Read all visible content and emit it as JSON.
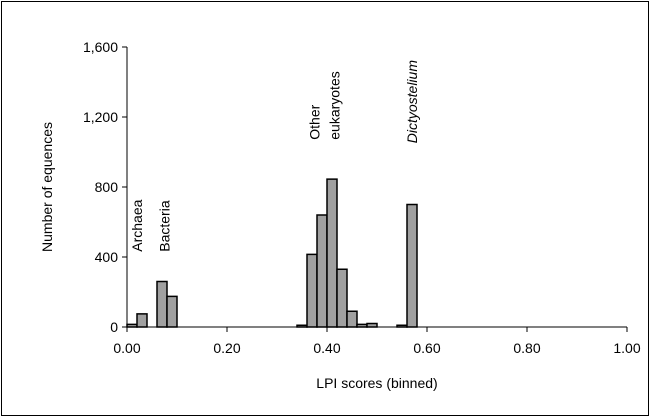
{
  "chart_data": {
    "type": "bar",
    "title": "",
    "xlabel": "LPI scores (binned)",
    "ylabel": "Number of equences",
    "xlim": [
      0,
      1.0
    ],
    "ylim": [
      0,
      1600
    ],
    "x_ticks": [
      "0.00",
      "0.20",
      "0.40",
      "0.60",
      "0.80",
      "1.00"
    ],
    "y_ticks": [
      "0",
      "400",
      "800",
      "1,200",
      "1,600"
    ],
    "bin_width": 0.02,
    "bins": [
      {
        "x": 0.0,
        "value": 15
      },
      {
        "x": 0.02,
        "value": 75
      },
      {
        "x": 0.06,
        "value": 260
      },
      {
        "x": 0.08,
        "value": 175
      },
      {
        "x": 0.34,
        "value": 10
      },
      {
        "x": 0.36,
        "value": 415
      },
      {
        "x": 0.38,
        "value": 640
      },
      {
        "x": 0.4,
        "value": 845
      },
      {
        "x": 0.42,
        "value": 330
      },
      {
        "x": 0.44,
        "value": 90
      },
      {
        "x": 0.46,
        "value": 15
      },
      {
        "x": 0.48,
        "value": 20
      },
      {
        "x": 0.54,
        "value": 10
      },
      {
        "x": 0.56,
        "value": 700
      }
    ],
    "annotations": [
      {
        "text": "Archaea",
        "x": 0.02,
        "y": 430,
        "style": "normal"
      },
      {
        "text": "Bacteria",
        "x": 0.075,
        "y": 430,
        "style": "normal"
      },
      {
        "text": "Other",
        "x": 0.375,
        "y": 1070,
        "style": "normal"
      },
      {
        "text": "eukaryotes",
        "x": 0.415,
        "y": 1070,
        "style": "normal"
      },
      {
        "text": "Dictyostelium",
        "x": 0.57,
        "y": 1050,
        "style": "italic"
      }
    ],
    "bar_color": "#a0a0a0",
    "grid": false,
    "legend": "none"
  }
}
